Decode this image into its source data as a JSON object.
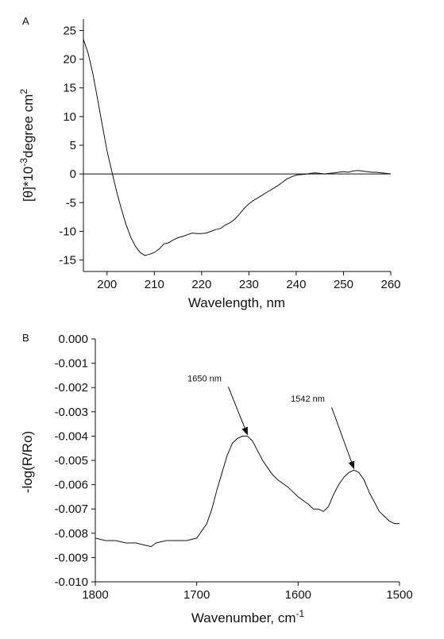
{
  "chart_data": [
    {
      "panel": "A",
      "type": "line",
      "xlabel": "Wavelength, nm",
      "ylabel_base": "[θ]*10",
      "ylabel_exp": "-3",
      "ylabel_mid": "degree cm",
      "ylabel_exp2": "2",
      "xlim": [
        195,
        260
      ],
      "ylim": [
        -17,
        27
      ],
      "xticks": [
        200,
        210,
        220,
        230,
        240,
        250,
        260
      ],
      "yticks": [
        25,
        20,
        15,
        10,
        5,
        0,
        -5,
        -10,
        -15
      ],
      "zero_line": true,
      "series": [
        {
          "x": [
            195,
            196,
            197,
            198,
            199,
            200,
            201,
            202,
            203,
            204,
            205,
            206,
            207,
            208,
            209,
            210,
            211,
            212,
            213,
            214,
            215,
            216,
            217,
            218,
            219,
            220,
            221,
            222,
            223,
            224,
            225,
            226,
            227,
            228,
            229,
            230,
            231,
            232,
            233,
            234,
            235,
            236,
            237,
            238,
            239,
            240,
            241,
            242,
            243,
            244,
            245,
            246,
            247,
            248,
            249,
            250,
            251,
            252,
            253,
            254,
            255,
            256,
            257,
            258,
            259,
            260
          ],
          "y": [
            23.5,
            21,
            17.5,
            13,
            8.5,
            4,
            0.5,
            -3,
            -6,
            -8.8,
            -11,
            -12.6,
            -13.7,
            -14.2,
            -14.0,
            -13.7,
            -13.1,
            -12.2,
            -12.0,
            -11.5,
            -11.1,
            -10.9,
            -10.6,
            -10.3,
            -10.4,
            -10.4,
            -10.3,
            -10.0,
            -9.7,
            -9.5,
            -8.9,
            -8.5,
            -7.9,
            -7.0,
            -6.0,
            -5.2,
            -4.6,
            -4.1,
            -3.6,
            -3.1,
            -2.6,
            -2.1,
            -1.5,
            -0.9,
            -0.5,
            -0.2,
            -0.1,
            -0.05,
            0.1,
            0.2,
            0.1,
            0.0,
            0.1,
            0.2,
            0.3,
            0.4,
            0.3,
            0.5,
            0.6,
            0.5,
            0.4,
            0.3,
            0.3,
            0.2,
            0.1,
            0.0
          ]
        }
      ]
    },
    {
      "panel": "B",
      "type": "line",
      "xlabel": "Wavenumber, cm",
      "xlabel_exp": "-1",
      "ylabel": "-log(R/Ro)",
      "xlim": [
        1800,
        1500
      ],
      "ylim": [
        -0.01,
        0.0
      ],
      "xticks": [
        1800,
        1700,
        1600,
        1500
      ],
      "yticks": [
        "0.000",
        "-0.001",
        "-0.002",
        "-0.003",
        "-0.004",
        "-0.005",
        "-0.006",
        "-0.007",
        "-0.008",
        "-0.009",
        "-0.010"
      ],
      "annotations": [
        {
          "text": "1650 nm",
          "x": 1650,
          "y": -0.004
        },
        {
          "text": "1542 nm",
          "x": 1545,
          "y": -0.0054
        }
      ],
      "series": [
        {
          "x": [
            1800,
            1790,
            1780,
            1770,
            1760,
            1750,
            1745,
            1740,
            1730,
            1720,
            1710,
            1700,
            1695,
            1690,
            1685,
            1680,
            1675,
            1670,
            1665,
            1660,
            1655,
            1650,
            1645,
            1640,
            1635,
            1630,
            1625,
            1620,
            1610,
            1600,
            1590,
            1585,
            1580,
            1575,
            1570,
            1565,
            1560,
            1555,
            1550,
            1545,
            1540,
            1535,
            1530,
            1525,
            1520,
            1515,
            1510,
            1505,
            1500
          ],
          "y": [
            -0.0082,
            -0.0083,
            -0.0083,
            -0.0084,
            -0.0084,
            -0.0085,
            -0.00855,
            -0.0084,
            -0.0083,
            -0.0083,
            -0.0083,
            -0.0082,
            -0.0079,
            -0.0076,
            -0.007,
            -0.0062,
            -0.0055,
            -0.0048,
            -0.0043,
            -0.0041,
            -0.004,
            -0.004,
            -0.0042,
            -0.0046,
            -0.005,
            -0.0053,
            -0.0056,
            -0.0058,
            -0.0061,
            -0.0065,
            -0.0068,
            -0.007,
            -0.007,
            -0.0071,
            -0.0069,
            -0.0064,
            -0.006,
            -0.0057,
            -0.0055,
            -0.0054,
            -0.0055,
            -0.0058,
            -0.0063,
            -0.0067,
            -0.0071,
            -0.0073,
            -0.0075,
            -0.0076,
            -0.0076
          ]
        }
      ]
    }
  ]
}
